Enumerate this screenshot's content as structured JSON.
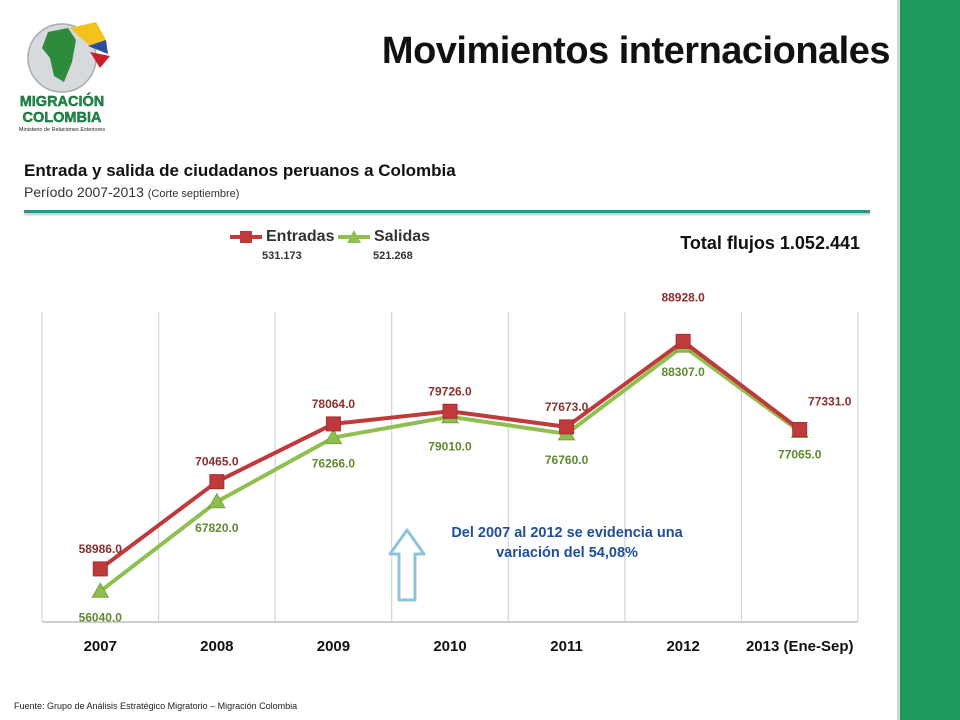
{
  "header": {
    "title": "Movimientos internacionales",
    "logo_line1": "MIGRACIÓN",
    "logo_line2": "COLOMBIA",
    "logo_line3": "Ministerio de Relaciones Exteriores"
  },
  "subtitle": "Entrada y salida de ciudadanos peruanos a Colombia",
  "period": "Período 2007-2013",
  "period_note": "(Corte septiembre)",
  "total_label": "Total flujos 1.052.441",
  "legend": {
    "entradas_label": "Entradas",
    "entradas_total": "531.173",
    "salidas_label": "Salidas",
    "salidas_total": "521.268"
  },
  "annotation": "Del 2007 al 2012  se evidencia una variación del 54,08%",
  "footer": "Fuente: Grupo de Análisis  Estratégico Migratorio – Migración Colombia",
  "colors": {
    "entradas": "#c0393b",
    "salidas": "#8fbf4e",
    "brand_green": "#1d9a5b",
    "annotation": "#1f4e9a"
  },
  "chart_data": {
    "type": "line",
    "categories": [
      "2007",
      "2008",
      "2009",
      "2010",
      "2011",
      "2012",
      "2013 (Ene-Sep)"
    ],
    "series": [
      {
        "name": "Entradas",
        "values": [
          58986.0,
          70465.0,
          78064.0,
          79726.0,
          77673.0,
          88928.0,
          77331.0
        ],
        "labels": [
          "58986.0",
          "70465.0",
          "78064.0",
          "79726.0",
          "77673.0",
          "88928.0",
          "77331.0"
        ]
      },
      {
        "name": "Salidas",
        "values": [
          56040.0,
          67820.0,
          76266.0,
          79010.0,
          76760.0,
          88307.0,
          77065.0
        ],
        "labels": [
          "56040.0",
          "67820.0",
          "76266.0",
          "79010.0",
          "76760.0",
          "88307.0",
          "77065.0"
        ]
      }
    ],
    "xlabel": "",
    "ylabel": "",
    "ylim": [
      52000,
      92000
    ],
    "grid": "vertical"
  }
}
